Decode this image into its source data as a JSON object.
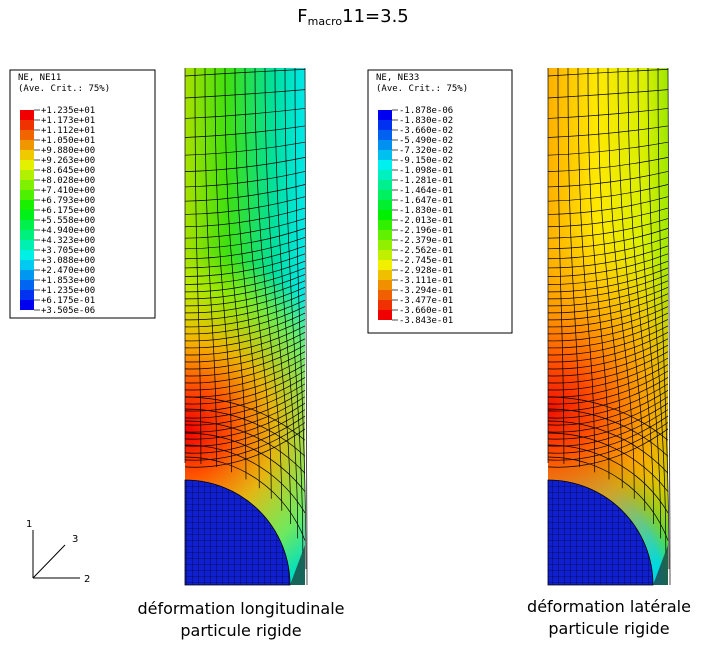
{
  "title": {
    "main": "F",
    "sub": "macro",
    "rest": "11=3.5"
  },
  "legends": [
    {
      "variable": "NE, NE11",
      "criterion": "(Ave. Crit.: 75%)",
      "labels": [
        "+1.235e+01",
        "+1.173e+01",
        "+1.112e+01",
        "+1.050e+01",
        "+9.880e+00",
        "+9.263e+00",
        "+8.645e+00",
        "+8.028e+00",
        "+7.410e+00",
        "+6.793e+00",
        "+6.175e+00",
        "+5.558e+00",
        "+4.940e+00",
        "+4.323e+00",
        "+3.705e+00",
        "+3.088e+00",
        "+2.470e+00",
        "+1.853e+00",
        "+1.235e+00",
        "+6.175e-01",
        "+3.505e-06"
      ]
    },
    {
      "variable": "NE, NE33",
      "criterion": "(Ave. Crit.: 75%)",
      "labels": [
        "-1.878e-06",
        "-1.830e-02",
        "-3.660e-02",
        "-5.490e-02",
        "-7.320e-02",
        "-9.150e-02",
        "-1.098e-01",
        "-1.281e-01",
        "-1.464e-01",
        "-1.647e-01",
        "-1.830e-01",
        "-2.013e-01",
        "-2.196e-01",
        "-2.379e-01",
        "-2.562e-01",
        "-2.745e-01",
        "-2.928e-01",
        "-3.111e-01",
        "-3.294e-01",
        "-3.477e-01",
        "-3.660e-01",
        "-3.843e-01"
      ]
    }
  ],
  "triad": {
    "axis1": "1",
    "axis3": "3",
    "axis2": "2"
  },
  "captions": [
    {
      "line1": "déformation longitudinale",
      "line2": "particule rigide"
    },
    {
      "line1": "déformation latérale",
      "line2": "particule rigide"
    }
  ]
}
